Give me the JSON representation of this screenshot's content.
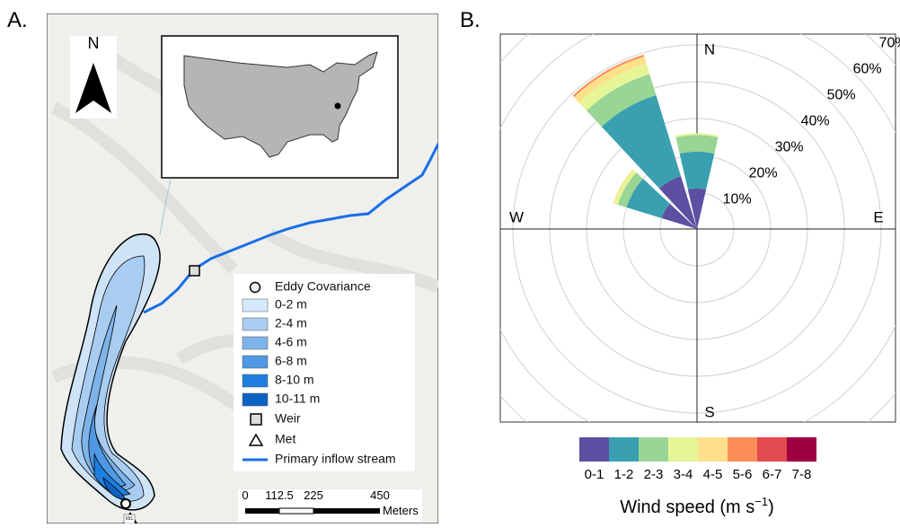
{
  "panels": {
    "a": "A.",
    "b": "B."
  },
  "map": {
    "north": "N",
    "legend": [
      "Eddy Covariance",
      "0-2 m",
      "2-4 m",
      "4-6 m",
      "6-8 m",
      "8-10 m",
      "10-11 m",
      "Weir",
      "Met",
      "Primary inflow stream"
    ],
    "scale": [
      "0",
      "112.5",
      "225",
      "450"
    ],
    "scale_unit": "Meters",
    "road": "651"
  },
  "chart_data": {
    "type": "windrose",
    "legend_title": [
      "Wind speed (m s",
      "−1",
      ")"
    ],
    "directions": [
      "N",
      "E",
      "S",
      "W"
    ],
    "x": [
      300,
      330,
      0
    ],
    "series": [
      {
        "name": "0-1",
        "color": "#5e4fa2",
        "values": [
          10,
          15,
          11
        ]
      },
      {
        "name": "1-2",
        "color": "#3aa0b0",
        "values": [
          10,
          23,
          10
        ]
      },
      {
        "name": "2-3",
        "color": "#99d594",
        "values": [
          2.5,
          6,
          4.5
        ]
      },
      {
        "name": "3-4",
        "color": "#e6f598",
        "values": [
          1,
          3,
          0.5
        ]
      },
      {
        "name": "4-5",
        "color": "#fee08b",
        "values": [
          0.3,
          2,
          0
        ]
      },
      {
        "name": "5-6",
        "color": "#fc8d59",
        "values": [
          0,
          0.5,
          0
        ]
      },
      {
        "name": "6-7",
        "color": "#e34a4f",
        "values": [
          0,
          0,
          0
        ]
      },
      {
        "name": "7-8",
        "color": "#9e0142",
        "values": [
          0,
          0,
          0
        ]
      }
    ],
    "rlim": [
      0,
      70
    ],
    "rticks": [
      {
        "value": 10,
        "label": "10%"
      },
      {
        "value": 20,
        "label": "20%"
      },
      {
        "value": 30,
        "label": "30%"
      },
      {
        "value": 40,
        "label": "40%"
      },
      {
        "value": 50,
        "label": "50%"
      },
      {
        "value": 60,
        "label": "60%"
      },
      {
        "value": 70,
        "label": "70%"
      }
    ]
  }
}
